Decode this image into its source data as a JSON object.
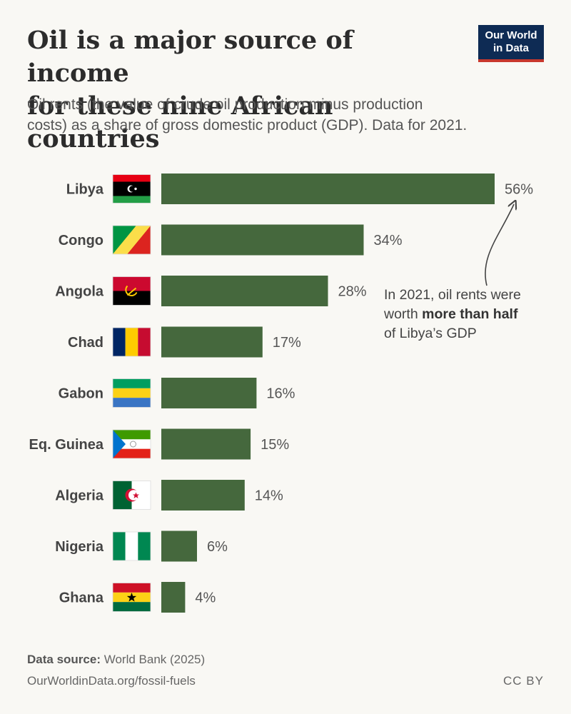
{
  "header": {
    "title_lines": [
      "Oil is a major source of income",
      "for these nine African countries"
    ],
    "subtitle_lines": [
      "Oil rents (the value of crude oil production minus production",
      "costs) as a share of gross domestic product (GDP). Data for 2021."
    ]
  },
  "logo": {
    "line1": "Our World",
    "line2": "in Data",
    "bg_color": "#0e2b54",
    "accent_color": "#c8382d"
  },
  "chart_data": {
    "type": "bar",
    "orientation": "horizontal",
    "categories": [
      "Libya",
      "Congo",
      "Angola",
      "Chad",
      "Gabon",
      "Eq. Guinea",
      "Algeria",
      "Nigeria",
      "Ghana"
    ],
    "flags": [
      "libya-flag",
      "congo-flag",
      "angola-flag",
      "chad-flag",
      "gabon-flag",
      "eq-guinea-flag",
      "algeria-flag",
      "nigeria-flag",
      "ghana-flag"
    ],
    "values": [
      56,
      34,
      28,
      17,
      16,
      15,
      14,
      6,
      4
    ],
    "value_labels": [
      "56%",
      "34%",
      "28%",
      "17%",
      "16%",
      "15%",
      "14%",
      "6%",
      "4%"
    ],
    "unit": "%",
    "bar_color": "#45683d",
    "grid": false,
    "annotation": {
      "target": "Libya",
      "text_before": "In 2021, oil rents were",
      "text_line2_pre": "worth ",
      "text_bold": "more than half",
      "text_line3": "of Libya’s GDP"
    }
  },
  "footer": {
    "source_label": "Data source:",
    "source_value": "World Bank (2025)",
    "url": "OurWorldinData.org/fossil-fuels",
    "license": "CC BY"
  }
}
